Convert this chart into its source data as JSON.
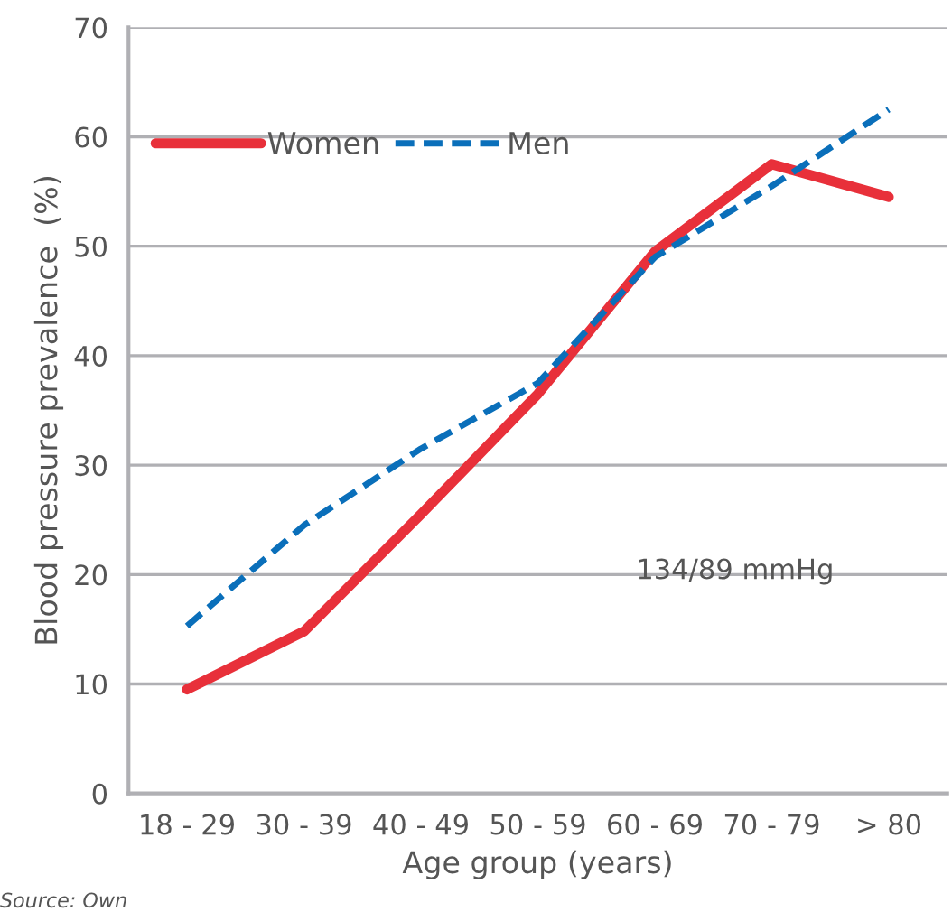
{
  "chart_data": {
    "type": "line",
    "xlabel": "Age group (years)",
    "ylabel": "Blood pressure prevalence  (%)",
    "categories": [
      "18 - 29",
      "30 - 39",
      "40 - 49",
      "50 - 59",
      "60 - 69",
      "70 - 79",
      "> 80"
    ],
    "series": [
      {
        "name": "Women",
        "color": "#e8303a",
        "line_style": "solid",
        "values": [
          9.5,
          14.8,
          25.5,
          36.5,
          49.5,
          57.5,
          54.5
        ]
      },
      {
        "name": "Men",
        "color": "#0a6fba",
        "line_style": "dashed",
        "values": [
          15.3,
          24.5,
          31.5,
          37.5,
          49,
          55.5,
          62.5
        ]
      }
    ],
    "ylim": [
      0,
      70
    ],
    "yticks": [
      0,
      10,
      20,
      30,
      40,
      50,
      60,
      70
    ],
    "grid": "y",
    "legend": "top left",
    "marker": "none",
    "annotations": [
      "134/89 mmHg",
      "Source: Own"
    ]
  }
}
